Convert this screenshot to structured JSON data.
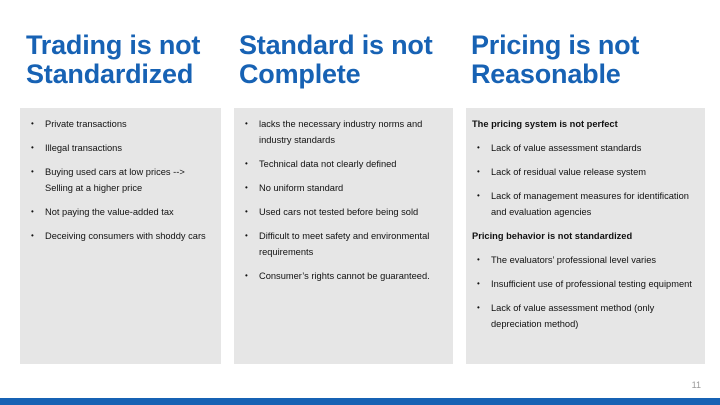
{
  "columns": [
    {
      "title_line1": "Trading is not",
      "title_line2": "Standardized",
      "bullets": [
        "Private transactions",
        "Illegal transactions",
        "Buying used cars at low prices --> Selling at a higher price",
        "Not paying the value-added tax",
        "Deceiving consumers with shoddy cars"
      ]
    },
    {
      "title_line1": "Standard is not",
      "title_line2": "Complete",
      "bullets": [
        "lacks the necessary industry norms and industry standards",
        "Technical data not clearly defined",
        "No uniform standard",
        "Used cars not tested before being sold",
        "Difficult to meet safety and environmental requirements",
        "Consumer’s rights cannot be guaranteed."
      ]
    },
    {
      "title_line1": "Pricing is not",
      "title_line2": "Reasonable",
      "sections": [
        {
          "heading": "The pricing system is not perfect",
          "bullets": [
            "Lack of value assessment standards",
            "Lack of residual value release system",
            "Lack of management measures for identification and evaluation agencies"
          ]
        },
        {
          "heading": "Pricing behavior is not standardized",
          "bullets": [
            "The evaluators’ professional level varies",
            "Insufficient use of professional testing equipment",
            "Lack of value assessment method (only depreciation method)"
          ]
        }
      ]
    }
  ],
  "page_number": "11",
  "colors": {
    "title": "#1762b4",
    "panel": "#e6e6e6",
    "bar": "#1762b4"
  }
}
